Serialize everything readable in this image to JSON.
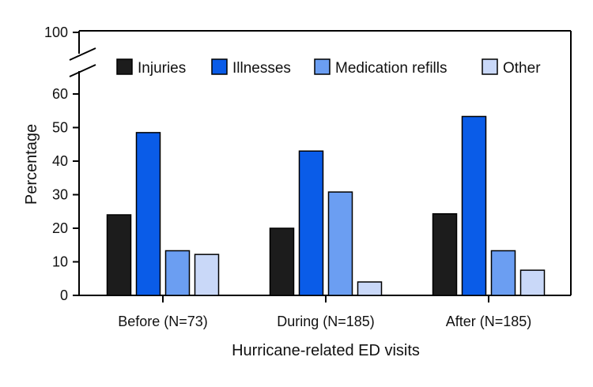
{
  "chart_data": {
    "type": "bar",
    "xlabel": "Hurricane-related ED visits",
    "ylabel": "Percentage",
    "ylim": [
      0,
      100
    ],
    "axis_break": [
      60,
      100
    ],
    "y_ticks": [
      0,
      10,
      20,
      30,
      40,
      50,
      60,
      100
    ],
    "categories": [
      "Before (N=73)",
      "During (N=185)",
      "After (N=185)"
    ],
    "series": [
      {
        "name": "Injuries",
        "color": "#1c1c1c",
        "values": [
          24.0,
          20.0,
          24.3
        ]
      },
      {
        "name": "Illnesses",
        "color": "#0a5ce8",
        "values": [
          48.5,
          43.0,
          53.3
        ]
      },
      {
        "name": "Medication refills",
        "color": "#6b9ef2",
        "values": [
          13.3,
          30.8,
          13.3
        ]
      },
      {
        "name": "Other",
        "color": "#c9d8f8",
        "values": [
          12.2,
          4.0,
          7.5
        ]
      }
    ],
    "legend": "top, inside plot",
    "grid": false
  }
}
